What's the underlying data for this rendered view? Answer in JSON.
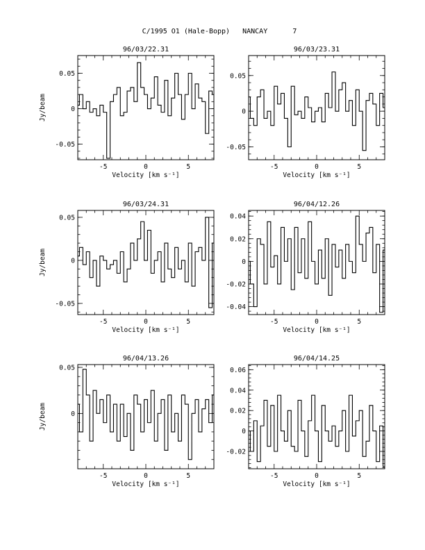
{
  "header": {
    "title": "C/1995 O1 (Hale-Bopp)   NANCAY      7"
  },
  "chart_data": [
    {
      "type": "line",
      "title": "96/03/22.31",
      "xlabel": "Velocity [km s⁻¹]",
      "ylabel": "Jy/beam",
      "xlim": [
        -8,
        8
      ],
      "ylim": [
        -0.072,
        0.075
      ],
      "yticks": [
        {
          "v": 0.05,
          "label": "0.05"
        },
        {
          "v": 0,
          "label": "0"
        },
        {
          "v": -0.05,
          "label": "-0.05"
        }
      ],
      "xticks": [
        {
          "v": -5,
          "label": "-5"
        },
        {
          "v": 0,
          "label": "0"
        },
        {
          "v": 5,
          "label": "5"
        }
      ],
      "series": [
        {
          "x": [
            -8.0,
            -7.6,
            -7.2,
            -6.8,
            -6.4,
            -6.0,
            -5.6,
            -5.2,
            -4.8,
            -4.4,
            -4.0,
            -3.6,
            -3.2,
            -2.8,
            -2.4,
            -2.0,
            -1.6,
            -1.2,
            -0.8,
            -0.4,
            0.0,
            0.4,
            0.8,
            1.2,
            1.6,
            2.0,
            2.4,
            2.8,
            3.2,
            3.6,
            4.0,
            4.4,
            4.8,
            5.2,
            5.6,
            6.0,
            6.4,
            6.8,
            7.2,
            7.6,
            8.0
          ],
          "y": [
            0.005,
            0.02,
            0.0,
            0.01,
            -0.005,
            0.0,
            -0.01,
            0.005,
            -0.005,
            -0.07,
            0.01,
            0.02,
            0.03,
            -0.01,
            -0.005,
            0.025,
            0.03,
            0.01,
            0.065,
            0.03,
            0.02,
            0.0,
            0.015,
            0.045,
            0.005,
            -0.005,
            0.04,
            -0.01,
            0.015,
            0.05,
            0.02,
            -0.015,
            0.02,
            0.05,
            0.0,
            0.035,
            0.015,
            0.01,
            -0.035,
            0.025,
            0.02
          ]
        }
      ]
    },
    {
      "type": "line",
      "title": "96/03/23.31",
      "xlabel": "Velocity [km s⁻¹]",
      "ylabel": "",
      "xlim": [
        -8,
        8
      ],
      "ylim": [
        -0.068,
        0.078
      ],
      "yticks": [
        {
          "v": 0.05,
          "label": "0.05"
        },
        {
          "v": 0,
          "label": "0"
        },
        {
          "v": -0.05,
          "label": "-0.05"
        }
      ],
      "xticks": [
        {
          "v": -5,
          "label": "-5"
        },
        {
          "v": 0,
          "label": "0"
        },
        {
          "v": 5,
          "label": "5"
        }
      ],
      "series": [
        {
          "x": [
            -8.0,
            -7.6,
            -7.2,
            -6.8,
            -6.4,
            -6.0,
            -5.6,
            -5.2,
            -4.8,
            -4.4,
            -4.0,
            -3.6,
            -3.2,
            -2.8,
            -2.4,
            -2.0,
            -1.6,
            -1.2,
            -0.8,
            -0.4,
            0.0,
            0.4,
            0.8,
            1.2,
            1.6,
            2.0,
            2.4,
            2.8,
            3.2,
            3.6,
            4.0,
            4.4,
            4.8,
            5.2,
            5.6,
            6.0,
            6.4,
            6.8,
            7.2,
            7.6,
            8.0
          ],
          "y": [
            0.02,
            -0.01,
            -0.02,
            0.02,
            0.03,
            -0.01,
            0.0,
            -0.02,
            0.035,
            0.01,
            0.025,
            -0.01,
            -0.05,
            0.035,
            -0.005,
            0.0,
            -0.01,
            0.02,
            0.005,
            -0.015,
            0.0,
            0.005,
            -0.015,
            0.025,
            0.005,
            0.055,
            0.0,
            0.03,
            0.04,
            0.0,
            0.015,
            -0.02,
            0.03,
            0.0,
            -0.055,
            0.015,
            0.025,
            0.01,
            -0.02,
            0.025,
            0.005
          ]
        }
      ]
    },
    {
      "type": "line",
      "title": "96/03/24.31",
      "xlabel": "Velocity [km s⁻¹]",
      "ylabel": "Jy/beam",
      "xlim": [
        -8,
        8
      ],
      "ylim": [
        -0.063,
        0.058
      ],
      "yticks": [
        {
          "v": 0.05,
          "label": "0.05"
        },
        {
          "v": 0,
          "label": "0"
        },
        {
          "v": -0.05,
          "label": "-0.05"
        }
      ],
      "xticks": [
        {
          "v": -5,
          "label": "-5"
        },
        {
          "v": 0,
          "label": "0"
        },
        {
          "v": 5,
          "label": "5"
        }
      ],
      "series": [
        {
          "x": [
            -8.0,
            -7.6,
            -7.2,
            -6.8,
            -6.4,
            -6.0,
            -5.6,
            -5.2,
            -4.8,
            -4.4,
            -4.0,
            -3.6,
            -3.2,
            -2.8,
            -2.4,
            -2.0,
            -1.6,
            -1.2,
            -0.8,
            -0.4,
            0.0,
            0.4,
            0.8,
            1.2,
            1.6,
            2.0,
            2.4,
            2.8,
            3.2,
            3.6,
            4.0,
            4.4,
            4.8,
            5.2,
            5.6,
            6.0,
            6.4,
            6.8,
            7.2,
            7.6,
            8.0
          ],
          "y": [
            0.005,
            0.015,
            -0.005,
            0.01,
            -0.02,
            0.0,
            -0.03,
            0.005,
            0.0,
            -0.01,
            -0.005,
            0.0,
            -0.015,
            0.01,
            -0.025,
            -0.01,
            0.02,
            0.0,
            0.025,
            0.045,
            0.0,
            0.035,
            -0.015,
            0.0,
            0.01,
            -0.025,
            0.02,
            -0.01,
            -0.02,
            0.015,
            -0.01,
            0.0,
            -0.025,
            0.02,
            -0.03,
            0.01,
            0.015,
            0.0,
            0.05,
            -0.055,
            0.02
          ]
        }
      ]
    },
    {
      "type": "line",
      "title": "96/04/12.26",
      "xlabel": "Velocity [km s⁻¹]",
      "ylabel": "",
      "xlim": [
        -8,
        8
      ],
      "ylim": [
        -0.047,
        0.045
      ],
      "yticks": [
        {
          "v": 0.04,
          "label": "0.04"
        },
        {
          "v": 0.02,
          "label": "0.02"
        },
        {
          "v": 0,
          "label": "0"
        },
        {
          "v": -0.02,
          "label": "-0.02"
        },
        {
          "v": -0.04,
          "label": "-0.04"
        }
      ],
      "xticks": [
        {
          "v": -5,
          "label": "-5"
        },
        {
          "v": 0,
          "label": "0"
        },
        {
          "v": 5,
          "label": "5"
        }
      ],
      "series": [
        {
          "x": [
            -8.0,
            -7.6,
            -7.2,
            -6.8,
            -6.4,
            -6.0,
            -5.6,
            -5.2,
            -4.8,
            -4.4,
            -4.0,
            -3.6,
            -3.2,
            -2.8,
            -2.4,
            -2.0,
            -1.6,
            -1.2,
            -0.8,
            -0.4,
            0.0,
            0.4,
            0.8,
            1.2,
            1.6,
            2.0,
            2.4,
            2.8,
            3.2,
            3.6,
            4.0,
            4.4,
            4.8,
            5.2,
            5.6,
            6.0,
            6.4,
            6.8,
            7.2,
            7.6,
            8.0
          ],
          "y": [
            0.0,
            -0.02,
            -0.04,
            0.02,
            0.015,
            -0.02,
            0.035,
            -0.005,
            0.005,
            -0.02,
            0.03,
            0.0,
            0.02,
            -0.025,
            0.03,
            -0.01,
            0.02,
            -0.015,
            0.035,
            0.0,
            -0.02,
            0.01,
            -0.015,
            0.02,
            -0.03,
            0.015,
            -0.005,
            0.01,
            -0.015,
            0.015,
            0.0,
            -0.01,
            0.04,
            0.015,
            0.0,
            0.025,
            0.03,
            -0.01,
            0.015,
            -0.045,
            0.01
          ]
        }
      ]
    },
    {
      "type": "line",
      "title": "96/04/13.26",
      "xlabel": "Velocity [km s⁻¹]",
      "ylabel": "Jy/beam",
      "xlim": [
        -8,
        8
      ],
      "ylim": [
        -0.06,
        0.053
      ],
      "yticks": [
        {
          "v": 0.05,
          "label": "0.05"
        },
        {
          "v": 0,
          "label": "0"
        }
      ],
      "xticks": [
        {
          "v": -5,
          "label": "-5"
        },
        {
          "v": 0,
          "label": "0"
        },
        {
          "v": 5,
          "label": "5"
        }
      ],
      "series": [
        {
          "x": [
            -8.0,
            -7.6,
            -7.2,
            -6.8,
            -6.4,
            -6.0,
            -5.6,
            -5.2,
            -4.8,
            -4.4,
            -4.0,
            -3.6,
            -3.2,
            -2.8,
            -2.4,
            -2.0,
            -1.6,
            -1.2,
            -0.8,
            -0.4,
            0.0,
            0.4,
            0.8,
            1.2,
            1.6,
            2.0,
            2.4,
            2.8,
            3.2,
            3.6,
            4.0,
            4.4,
            4.8,
            5.2,
            5.6,
            6.0,
            6.4,
            6.8,
            7.2,
            7.6,
            8.0
          ],
          "y": [
            0.01,
            -0.02,
            0.048,
            0.02,
            -0.03,
            0.025,
            0.0,
            0.015,
            -0.01,
            0.02,
            -0.02,
            0.01,
            -0.03,
            0.01,
            -0.025,
            0.0,
            -0.04,
            0.02,
            0.01,
            -0.02,
            0.015,
            -0.01,
            0.025,
            -0.03,
            0.0,
            0.015,
            -0.04,
            0.02,
            -0.02,
            0.0,
            -0.03,
            0.02,
            0.01,
            -0.05,
            0.0,
            0.015,
            -0.02,
            0.005,
            0.015,
            -0.01,
            0.02
          ]
        }
      ]
    },
    {
      "type": "line",
      "title": "96/04/14.25",
      "xlabel": "Velocity [km s⁻¹]",
      "ylabel": "",
      "xlim": [
        -8,
        8
      ],
      "ylim": [
        -0.037,
        0.065
      ],
      "yticks": [
        {
          "v": 0.06,
          "label": "0.06"
        },
        {
          "v": 0.04,
          "label": "0.04"
        },
        {
          "v": 0.02,
          "label": "0.02"
        },
        {
          "v": 0,
          "label": "0"
        },
        {
          "v": -0.02,
          "label": "-0.02"
        }
      ],
      "xticks": [
        {
          "v": -5,
          "label": "-5"
        },
        {
          "v": 0,
          "label": "0"
        },
        {
          "v": 5,
          "label": "5"
        }
      ],
      "series": [
        {
          "x": [
            -8.0,
            -7.6,
            -7.2,
            -6.8,
            -6.4,
            -6.0,
            -5.6,
            -5.2,
            -4.8,
            -4.4,
            -4.0,
            -3.6,
            -3.2,
            -2.8,
            -2.4,
            -2.0,
            -1.6,
            -1.2,
            -0.8,
            -0.4,
            0.0,
            0.4,
            0.8,
            1.2,
            1.6,
            2.0,
            2.4,
            2.8,
            3.2,
            3.6,
            4.0,
            4.4,
            4.8,
            5.2,
            5.6,
            6.0,
            6.4,
            6.8,
            7.2,
            7.6,
            8.0
          ],
          "y": [
            0.0,
            -0.02,
            0.01,
            -0.03,
            0.005,
            0.03,
            -0.015,
            0.025,
            -0.02,
            0.035,
            0.0,
            -0.01,
            0.02,
            -0.015,
            -0.02,
            0.03,
            0.0,
            -0.025,
            0.01,
            0.035,
            0.0,
            -0.03,
            0.025,
            0.0,
            -0.01,
            0.005,
            -0.015,
            0.0,
            0.02,
            -0.02,
            0.035,
            -0.005,
            0.01,
            0.02,
            -0.025,
            -0.01,
            0.025,
            0.0,
            -0.03,
            0.005,
            -0.035
          ]
        }
      ]
    }
  ]
}
